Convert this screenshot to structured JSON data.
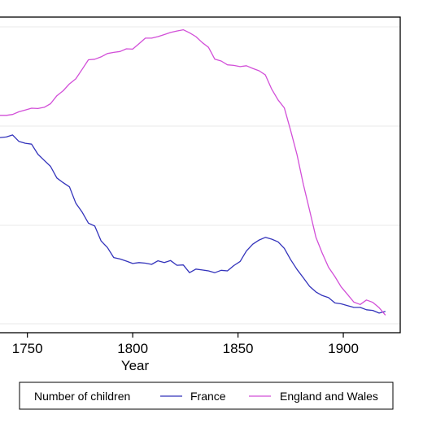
{
  "chart_data": {
    "type": "line",
    "title": "",
    "xlabel": "Year",
    "ylabel": "",
    "xlim": [
      1737,
      1922
    ],
    "ylim": [
      0,
      100
    ],
    "x_ticks": [
      "1750",
      "1800",
      "1850",
      "1900"
    ],
    "grid": true,
    "legend": {
      "title": "Number of children",
      "placement": "bottom"
    },
    "colors": {
      "France": "#3333bb",
      "England and Wales": "#d24fd8"
    },
    "series": [
      {
        "name": "France",
        "color": "#3333bb",
        "x": [
          1737,
          1740,
          1743,
          1746,
          1749,
          1752,
          1755,
          1758,
          1761,
          1764,
          1767,
          1770,
          1773,
          1776,
          1779,
          1782,
          1785,
          1788,
          1791,
          1794,
          1797,
          1800,
          1803,
          1806,
          1809,
          1812,
          1815,
          1818,
          1821,
          1824,
          1827,
          1830,
          1833,
          1836,
          1839,
          1842,
          1845,
          1848,
          1851,
          1854,
          1857,
          1860,
          1863,
          1866,
          1869,
          1872,
          1875,
          1878,
          1881,
          1884,
          1887,
          1890,
          1893,
          1896,
          1899,
          1902,
          1905,
          1908,
          1911,
          1914,
          1917,
          1920
        ],
        "y": [
          62.7,
          62.9,
          63.6,
          61.4,
          60.8,
          60.5,
          57.1,
          55.0,
          53.0,
          49.1,
          47.5,
          46.1,
          40.6,
          37.6,
          33.9,
          32.9,
          27.9,
          25.7,
          22.3,
          21.8,
          21.1,
          20.3,
          20.6,
          20.4,
          20.0,
          21.2,
          20.6,
          21.3,
          19.7,
          19.8,
          17.2,
          18.4,
          18.1,
          17.8,
          17.2,
          18.0,
          17.8,
          19.6,
          21.0,
          24.5,
          26.8,
          28.2,
          29.1,
          28.5,
          27.6,
          25.4,
          21.6,
          18.3,
          15.5,
          12.6,
          10.7,
          9.5,
          8.8,
          7.0,
          6.7,
          6.1,
          5.5,
          5.5,
          4.7,
          4.5,
          3.6,
          4.2
        ]
      },
      {
        "name": "England and Wales",
        "color": "#d24fd8",
        "x": [
          1737,
          1740,
          1743,
          1746,
          1749,
          1752,
          1755,
          1758,
          1761,
          1764,
          1767,
          1770,
          1773,
          1776,
          1779,
          1782,
          1785,
          1788,
          1791,
          1794,
          1797,
          1800,
          1803,
          1806,
          1809,
          1812,
          1815,
          1818,
          1821,
          1824,
          1827,
          1830,
          1833,
          1836,
          1839,
          1842,
          1845,
          1848,
          1851,
          1854,
          1857,
          1860,
          1863,
          1866,
          1869,
          1872,
          1875,
          1878,
          1881,
          1884,
          1887,
          1890,
          1893,
          1896,
          1899,
          1902,
          1905,
          1908,
          1911,
          1914,
          1917,
          1920
        ],
        "y": [
          70.2,
          70.2,
          70.5,
          71.4,
          72.0,
          72.6,
          72.5,
          72.9,
          74.1,
          76.8,
          78.5,
          80.8,
          82.5,
          85.7,
          88.9,
          89.1,
          89.9,
          91.0,
          91.4,
          91.7,
          92.6,
          92.5,
          94.3,
          96.2,
          96.2,
          96.7,
          97.4,
          98.1,
          98.6,
          99.0,
          98.0,
          96.7,
          94.7,
          93.1,
          89.1,
          88.5,
          87.2,
          87.0,
          86.6,
          86.9,
          86.0,
          85.2,
          83.8,
          79.0,
          75.4,
          72.7,
          65.1,
          57.0,
          47.1,
          38.2,
          29.1,
          23.8,
          19.0,
          15.9,
          12.4,
          9.9,
          7.3,
          6.5,
          8.0,
          7.2,
          5.4,
          2.9
        ]
      }
    ]
  }
}
